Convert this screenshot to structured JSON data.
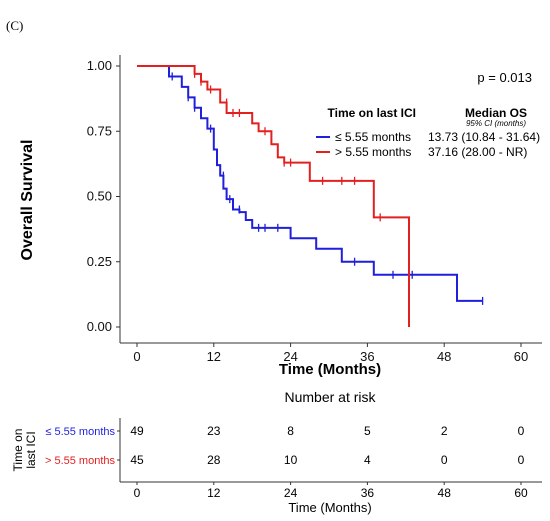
{
  "panel_label": "(C)",
  "chart_data": {
    "type": "line",
    "subtype": "kaplan-meier",
    "ylabel": "Overall Survival",
    "xlabel": "Time (Months)",
    "xlim": [
      0,
      60
    ],
    "ylim": [
      0,
      1
    ],
    "x_ticks": [
      0,
      12,
      24,
      36,
      48,
      60
    ],
    "y_ticks": [
      "0.00",
      "0.25",
      "0.50",
      "0.75",
      "1.00"
    ],
    "p_value": "p = 0.013",
    "legend": {
      "title": "Time on last ICI",
      "stat_title": "Median OS",
      "stat_subtitle": "95% CI (months)",
      "entries": [
        {
          "label": "≤ 5.55 months",
          "stat": "13.73 (10.84 - 31.64)",
          "color": "#1f1fdc"
        },
        {
          "label": "> 5.55 months",
          "stat": "37.16 (28.00 - NR)",
          "color": "#e32020"
        }
      ]
    },
    "series": [
      {
        "name": "≤ 5.55 months",
        "color": "#1f1fdc",
        "steps": [
          [
            0,
            1.0
          ],
          [
            5,
            0.96
          ],
          [
            7,
            0.92
          ],
          [
            8,
            0.88
          ],
          [
            9,
            0.84
          ],
          [
            10,
            0.8
          ],
          [
            11,
            0.76
          ],
          [
            12,
            0.68
          ],
          [
            12.5,
            0.62
          ],
          [
            13,
            0.58
          ],
          [
            13.5,
            0.53
          ],
          [
            14,
            0.49
          ],
          [
            15,
            0.45
          ],
          [
            16,
            0.44
          ],
          [
            17,
            0.41
          ],
          [
            18,
            0.38
          ],
          [
            24,
            0.34
          ],
          [
            28,
            0.3
          ],
          [
            32,
            0.25
          ],
          [
            37,
            0.2
          ],
          [
            50,
            0.1
          ],
          [
            54,
            0.1
          ]
        ],
        "censor": [
          [
            5.5,
            0.96
          ],
          [
            8,
            0.88
          ],
          [
            9,
            0.84
          ],
          [
            11.5,
            0.76
          ],
          [
            13.5,
            0.58
          ],
          [
            14.5,
            0.49
          ],
          [
            15,
            0.47
          ],
          [
            16,
            0.45
          ],
          [
            19,
            0.38
          ],
          [
            20,
            0.38
          ],
          [
            22,
            0.38
          ],
          [
            34,
            0.25
          ],
          [
            40,
            0.2
          ],
          [
            43,
            0.2
          ],
          [
            54,
            0.1
          ]
        ]
      },
      {
        "name": "> 5.55 months",
        "color": "#e32020",
        "steps": [
          [
            0,
            1.0
          ],
          [
            9,
            0.97
          ],
          [
            10,
            0.94
          ],
          [
            11,
            0.91
          ],
          [
            13,
            0.86
          ],
          [
            14,
            0.82
          ],
          [
            18,
            0.78
          ],
          [
            19,
            0.75
          ],
          [
            21,
            0.7
          ],
          [
            22,
            0.65
          ],
          [
            23,
            0.63
          ],
          [
            27,
            0.56
          ],
          [
            37,
            0.42
          ],
          [
            42.5,
            0.0
          ]
        ],
        "censor": [
          [
            9,
            0.97
          ],
          [
            10,
            0.94
          ],
          [
            11.5,
            0.91
          ],
          [
            14,
            0.86
          ],
          [
            15,
            0.82
          ],
          [
            16,
            0.82
          ],
          [
            20,
            0.75
          ],
          [
            22,
            0.67
          ],
          [
            23,
            0.63
          ],
          [
            24,
            0.63
          ],
          [
            29,
            0.56
          ],
          [
            32,
            0.56
          ],
          [
            34,
            0.56
          ],
          [
            38,
            0.42
          ]
        ]
      }
    ]
  },
  "risk_table": {
    "title": "Number at risk",
    "ylabel": "Time on last ICI",
    "xlabel": "Time (Months)",
    "x_ticks": [
      0,
      12,
      24,
      36,
      48,
      60
    ],
    "rows": [
      {
        "label": "≤ 5.55 months",
        "color": "#1f1fdc",
        "values": [
          49,
          23,
          8,
          5,
          2,
          0
        ]
      },
      {
        "label": "> 5.55 months",
        "color": "#e32020",
        "values": [
          45,
          28,
          10,
          4,
          0,
          0
        ]
      }
    ]
  }
}
